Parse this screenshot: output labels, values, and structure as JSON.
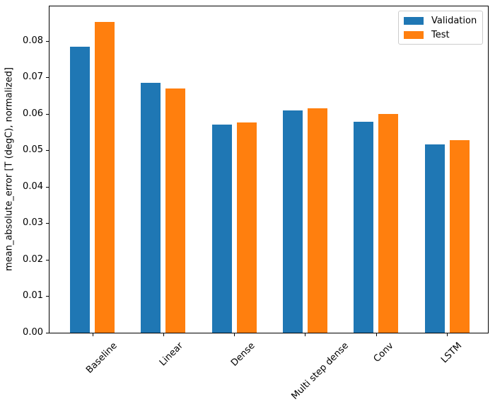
{
  "chart_data": {
    "type": "bar",
    "title": "",
    "xlabel": "",
    "ylabel": "mean_absolute_error [T (degC), normalized]",
    "categories": [
      "Baseline",
      "Linear",
      "Dense",
      "Multi step dense",
      "Conv",
      "LSTM"
    ],
    "series": [
      {
        "name": "Validation",
        "color": "#1f77b4",
        "values": [
          0.0784,
          0.0686,
          0.057,
          0.061,
          0.0579,
          0.0517
        ]
      },
      {
        "name": "Test",
        "color": "#ff7f0e",
        "values": [
          0.0852,
          0.067,
          0.0576,
          0.0615,
          0.06,
          0.0528
        ]
      }
    ],
    "ylim": [
      0,
      0.0895
    ],
    "ytick_labels": [
      "0.00",
      "0.01",
      "0.02",
      "0.03",
      "0.04",
      "0.05",
      "0.06",
      "0.07",
      "0.08"
    ],
    "xtick_rotation": 45,
    "grid": false,
    "legend_position": "upper right"
  }
}
